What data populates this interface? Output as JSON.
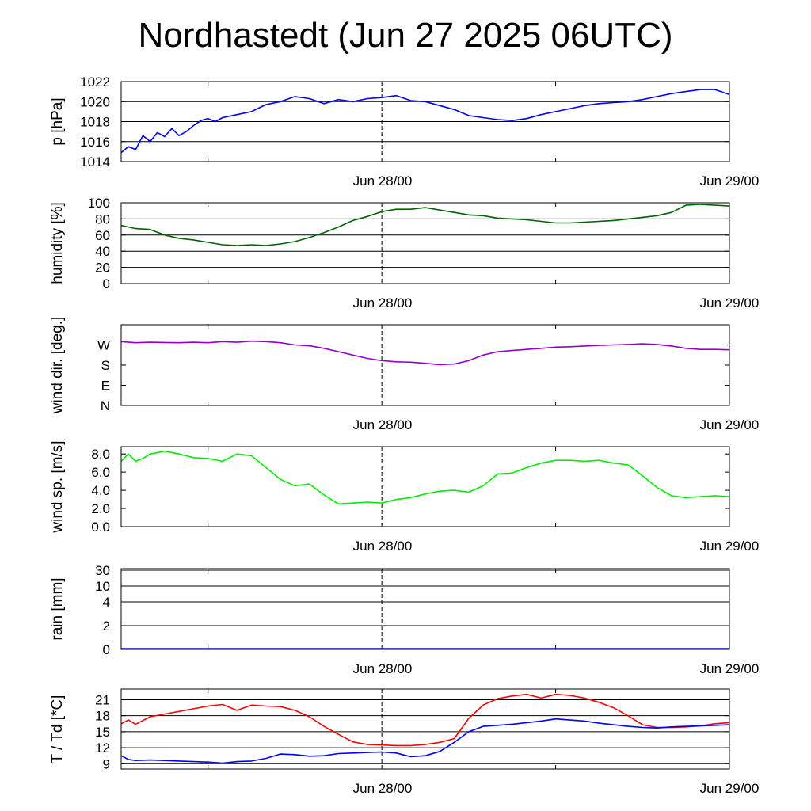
{
  "title": "Nordhastedt (Jun 27 2025 06UTC)",
  "x_ticks": [
    "Jun 28/00",
    "Jun 29/00"
  ],
  "chart_data": [
    {
      "type": "line",
      "ylabel": "p [hPa]",
      "ylim": [
        1014,
        1022
      ],
      "yticks": [
        {
          "label": "1022",
          "value": 1022
        },
        {
          "label": "1020",
          "value": 1020
        },
        {
          "label": "1018",
          "value": 1018
        },
        {
          "label": "1016",
          "value": 1016
        },
        {
          "label": "1014",
          "value": 1014
        }
      ],
      "grid": true,
      "series": [
        {
          "color": "#0000ff",
          "x": [
            0,
            0.5,
            1,
            1.5,
            2,
            2.5,
            3,
            3.5,
            4,
            4.5,
            5,
            5.5,
            6,
            6.5,
            7,
            8,
            9,
            10,
            11,
            12,
            13,
            14,
            15,
            16,
            17,
            18,
            19,
            20,
            21,
            22,
            23,
            24,
            25,
            26,
            27,
            28,
            29,
            30,
            31,
            32,
            33,
            34,
            35,
            36,
            37,
            38,
            39,
            40,
            41,
            42
          ],
          "y": [
            1014.9,
            1015.5,
            1015.2,
            1016.6,
            1016.0,
            1016.9,
            1016.5,
            1017.3,
            1016.6,
            1017.0,
            1017.6,
            1018.1,
            1018.3,
            1018.0,
            1018.4,
            1018.7,
            1019.0,
            1019.7,
            1020.0,
            1020.5,
            1020.3,
            1019.8,
            1020.2,
            1020.0,
            1020.3,
            1020.4,
            1020.6,
            1020.1,
            1020.0,
            1019.6,
            1019.2,
            1018.6,
            1018.4,
            1018.2,
            1018.1,
            1018.3,
            1018.7,
            1019.0,
            1019.3,
            1019.6,
            1019.8,
            1019.9,
            1020.0,
            1020.2,
            1020.5,
            1020.8,
            1021.0,
            1021.2,
            1021.2,
            1020.7
          ]
        }
      ]
    },
    {
      "type": "line",
      "ylabel": "humidity [%]",
      "ylim": [
        0,
        100
      ],
      "yticks": [
        {
          "label": "100",
          "value": 100
        },
        {
          "label": "80",
          "value": 80
        },
        {
          "label": "60",
          "value": 60
        },
        {
          "label": "40",
          "value": 40
        },
        {
          "label": "20",
          "value": 20
        },
        {
          "label": "0",
          "value": 0
        }
      ],
      "grid": true,
      "series": [
        {
          "color": "#006400",
          "x": [
            0,
            1,
            2,
            3,
            4,
            5,
            6,
            7,
            8,
            9,
            10,
            11,
            12,
            13,
            14,
            15,
            16,
            17,
            18,
            19,
            20,
            21,
            22,
            23,
            24,
            25,
            26,
            27,
            28,
            29,
            30,
            31,
            32,
            33,
            34,
            35,
            36,
            37,
            38,
            39,
            40,
            41,
            42
          ],
          "y": [
            72,
            68,
            67,
            60,
            56,
            54,
            51,
            48,
            47,
            48,
            47,
            49,
            52,
            57,
            63,
            70,
            78,
            83,
            89,
            92,
            92,
            94,
            91,
            88,
            85,
            84,
            81,
            80,
            79,
            77,
            75,
            75,
            76,
            77,
            78,
            80,
            82,
            84,
            88,
            97,
            98,
            97,
            96
          ]
        }
      ]
    },
    {
      "type": "line",
      "ylabel": "wind dir. [deg.]",
      "ylim": [
        0,
        360
      ],
      "yticks": [
        {
          "label": "W",
          "value": 270
        },
        {
          "label": "S",
          "value": 180
        },
        {
          "label": "E",
          "value": 90
        },
        {
          "label": "N",
          "value": 0
        }
      ],
      "grid": false,
      "series": [
        {
          "color": "#9400d3",
          "x": [
            0,
            1,
            2,
            3,
            4,
            5,
            6,
            7,
            8,
            9,
            10,
            11,
            12,
            13,
            14,
            15,
            16,
            17,
            18,
            19,
            20,
            21,
            22,
            23,
            24,
            25,
            26,
            27,
            28,
            29,
            30,
            31,
            32,
            33,
            34,
            35,
            36,
            37,
            38,
            39,
            40,
            41,
            42
          ],
          "y": [
            285,
            280,
            282,
            281,
            280,
            282,
            280,
            285,
            282,
            287,
            285,
            280,
            270,
            266,
            255,
            240,
            225,
            210,
            200,
            195,
            193,
            188,
            182,
            185,
            200,
            225,
            240,
            245,
            250,
            255,
            260,
            262,
            265,
            268,
            270,
            272,
            275,
            272,
            265,
            255,
            250,
            250,
            248
          ]
        }
      ]
    },
    {
      "type": "line",
      "ylabel": "wind sp. [m/s]",
      "ylim": [
        0,
        8.8
      ],
      "yticks": [
        {
          "label": "8.0",
          "value": 8
        },
        {
          "label": "6.0",
          "value": 6
        },
        {
          "label": "4.0",
          "value": 4
        },
        {
          "label": "2.0",
          "value": 2
        },
        {
          "label": "0.0",
          "value": 0
        }
      ],
      "grid": false,
      "series": [
        {
          "color": "#00ee00",
          "x": [
            0,
            0.5,
            1,
            1.5,
            2,
            3,
            4,
            5,
            6,
            7,
            8,
            9,
            10,
            11,
            12,
            13,
            14,
            15,
            16,
            17,
            18,
            19,
            20,
            21,
            22,
            23,
            24,
            25,
            26,
            27,
            28,
            29,
            30,
            31,
            32,
            33,
            34,
            35,
            36,
            37,
            38,
            39,
            40,
            41,
            42
          ],
          "y": [
            7.2,
            8.0,
            7.2,
            7.5,
            8.0,
            8.3,
            8.0,
            7.6,
            7.5,
            7.2,
            8.0,
            7.8,
            6.5,
            5.2,
            4.5,
            4.7,
            3.5,
            2.5,
            2.6,
            2.7,
            2.6,
            3.0,
            3.2,
            3.6,
            3.9,
            4.0,
            3.8,
            4.5,
            5.8,
            5.9,
            6.5,
            7.0,
            7.3,
            7.3,
            7.2,
            7.3,
            7.0,
            6.8,
            5.6,
            4.3,
            3.4,
            3.2,
            3.3,
            3.4,
            3.3
          ]
        }
      ]
    },
    {
      "type": "line",
      "ylabel": "rain [mm]",
      "yscale": "nonlinear",
      "yticks": [
        {
          "label": "30",
          "value": 30
        },
        {
          "label": "10",
          "value": 10
        },
        {
          "label": "4",
          "value": 4
        },
        {
          "label": "2",
          "value": 2
        },
        {
          "label": "0",
          "value": 0
        }
      ],
      "grid": true,
      "series": [
        {
          "color": "#0000ff",
          "x": [
            0,
            42
          ],
          "y": [
            0,
            0
          ]
        }
      ]
    },
    {
      "type": "line",
      "ylabel": "T / Td [*C]",
      "ylim": [
        8,
        23
      ],
      "yticks": [
        {
          "label": "21",
          "value": 21
        },
        {
          "label": "18",
          "value": 18
        },
        {
          "label": "15",
          "value": 15
        },
        {
          "label": "12",
          "value": 12
        },
        {
          "label": "9",
          "value": 9
        }
      ],
      "grid": true,
      "series": [
        {
          "color": "#ff0000",
          "x": [
            0,
            0.5,
            1,
            2,
            3,
            4,
            5,
            6,
            7,
            8,
            9,
            10,
            11,
            12,
            13,
            14,
            15,
            16,
            17,
            18,
            19,
            20,
            21,
            22,
            23,
            24,
            25,
            26,
            27,
            28,
            29,
            30,
            31,
            32,
            33,
            34,
            35,
            36,
            37,
            38,
            39,
            40,
            41,
            42
          ],
          "y": [
            16.5,
            17.2,
            16.4,
            17.8,
            18.3,
            18.8,
            19.3,
            19.8,
            20.1,
            19.0,
            20.0,
            19.8,
            19.7,
            19.0,
            17.8,
            16.0,
            14.5,
            13.1,
            12.6,
            12.5,
            12.4,
            12.4,
            12.6,
            13.0,
            13.7,
            17.5,
            20.0,
            21.2,
            21.7,
            22.0,
            21.3,
            22.0,
            21.8,
            21.3,
            20.5,
            19.5,
            18.0,
            16.3,
            15.8,
            15.8,
            15.9,
            16.1,
            16.5,
            16.7
          ]
        },
        {
          "color": "#0000ff",
          "x": [
            0,
            0.5,
            1,
            2,
            3,
            4,
            5,
            6,
            7,
            8,
            9,
            10,
            11,
            12,
            13,
            14,
            15,
            16,
            17,
            18,
            19,
            20,
            21,
            22,
            23,
            24,
            25,
            26,
            27,
            28,
            29,
            30,
            31,
            32,
            33,
            34,
            35,
            36,
            37,
            38,
            39,
            40,
            41,
            42
          ],
          "y": [
            10.5,
            9.8,
            9.6,
            9.7,
            9.6,
            9.5,
            9.4,
            9.3,
            9.1,
            9.4,
            9.5,
            10.0,
            10.8,
            10.7,
            10.4,
            10.5,
            10.9,
            11.0,
            11.1,
            11.2,
            11.0,
            10.3,
            10.5,
            11.3,
            13.0,
            15.0,
            16.0,
            16.2,
            16.4,
            16.7,
            17.0,
            17.4,
            17.2,
            17.0,
            16.6,
            16.3,
            16.0,
            15.8,
            15.7,
            15.9,
            16.0,
            16.1,
            16.2,
            16.3
          ]
        }
      ]
    }
  ]
}
